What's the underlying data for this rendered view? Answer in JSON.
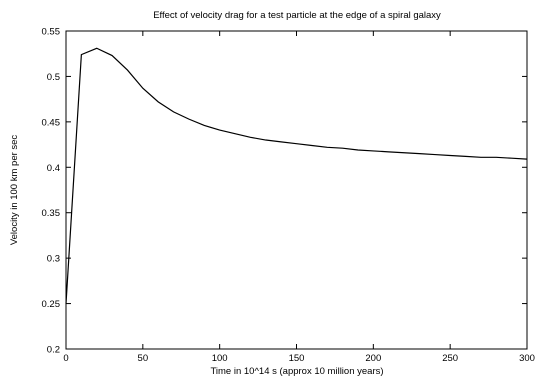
{
  "chart_data": {
    "type": "line",
    "title": "Effect of velocity drag for a test particle at the edge of a spiral galaxy",
    "xlabel": "Time in 10^14 s (approx 10 million years)",
    "ylabel": "Velocity in 100 km per sec",
    "xlim": [
      0,
      300
    ],
    "ylim": [
      0.2,
      0.55
    ],
    "xticks": [
      0,
      50,
      100,
      150,
      200,
      250,
      300
    ],
    "yticks": [
      0.2,
      0.25,
      0.3,
      0.35,
      0.4,
      0.45,
      0.5,
      0.55
    ],
    "xtick_labels": [
      "0",
      "50",
      "100",
      "150",
      "200",
      "250",
      "300"
    ],
    "ytick_labels": [
      "0.2",
      "0.25",
      "0.3",
      "0.35",
      "0.4",
      "0.45",
      "0.5",
      "0.55"
    ],
    "grid": false,
    "legend": "none",
    "series": [
      {
        "color": "#000000",
        "x": [
          0,
          10,
          20,
          30,
          40,
          50,
          60,
          70,
          80,
          90,
          100,
          110,
          120,
          130,
          140,
          150,
          160,
          170,
          180,
          190,
          200,
          210,
          220,
          230,
          240,
          250,
          260,
          270,
          280,
          290,
          300
        ],
        "y": [
          0.25,
          0.524,
          0.531,
          0.523,
          0.507,
          0.487,
          0.472,
          0.461,
          0.453,
          0.446,
          0.441,
          0.437,
          0.433,
          0.43,
          0.428,
          0.426,
          0.424,
          0.422,
          0.421,
          0.419,
          0.418,
          0.417,
          0.416,
          0.415,
          0.414,
          0.413,
          0.412,
          0.411,
          0.411,
          0.41,
          0.409
        ]
      }
    ]
  }
}
